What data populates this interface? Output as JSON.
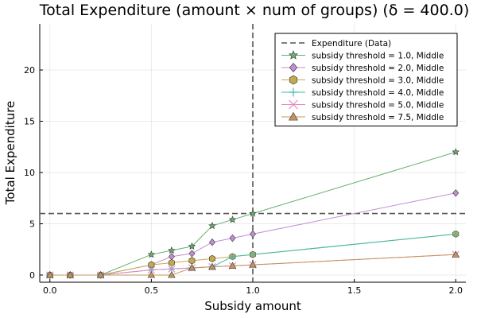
{
  "chart_data": {
    "type": "line",
    "title": "Total Expenditure (amount × num of groups) (δ = 400.0)",
    "xlabel": "Subsidy amount",
    "ylabel": "Total Expenditure",
    "xlim": [
      -0.05,
      2.05
    ],
    "ylim": [
      -0.7,
      24.5
    ],
    "xticks": [
      0.0,
      0.5,
      1.0,
      1.5,
      2.0
    ],
    "xtick_labels": [
      "0.0",
      "0.5",
      "1.0",
      "1.5",
      "2.0"
    ],
    "yticks": [
      0,
      5,
      10,
      15,
      20
    ],
    "ytick_labels": [
      "0",
      "5",
      "10",
      "15",
      "20"
    ],
    "grid": true,
    "legend_position": "top-right",
    "reference_lines": [
      {
        "name": "Expenditure (Data)",
        "orientation": "horizontal",
        "value": 6.0,
        "color": "#555555",
        "style": "dashed"
      },
      {
        "orientation": "vertical",
        "value": 1.0,
        "color": "#555555",
        "style": "dashed"
      }
    ],
    "x": [
      0.0,
      0.1,
      0.25,
      0.5,
      0.6,
      0.7,
      0.8,
      0.9,
      1.0,
      2.0
    ],
    "series": [
      {
        "name": "subsidy threshold = 1.0, Middle",
        "marker": "star",
        "color": "#6aae6e",
        "values": [
          0.0,
          0.0,
          0.0,
          2.0,
          2.4,
          2.8,
          4.8,
          5.4,
          6.0,
          12.0
        ]
      },
      {
        "name": "subsidy threshold = 2.0, Middle",
        "marker": "diamond",
        "color": "#c38ed4",
        "values": [
          0.0,
          0.0,
          0.0,
          1.0,
          1.8,
          2.1,
          3.2,
          3.6,
          4.0,
          8.0
        ]
      },
      {
        "name": "subsidy threshold = 3.0, Middle",
        "marker": "hexagon",
        "color": "#c5a94f",
        "values": [
          0.0,
          0.0,
          0.0,
          1.0,
          1.2,
          1.4,
          1.6,
          1.8,
          2.0,
          4.0
        ]
      },
      {
        "name": "subsidy threshold = 4.0, Middle",
        "marker": "plus",
        "color": "#3dbab0",
        "values": [
          0.0,
          0.0,
          0.0,
          0.5,
          0.6,
          0.7,
          0.8,
          1.8,
          2.0,
          4.0
        ]
      },
      {
        "name": "subsidy threshold = 5.0, Middle",
        "marker": "cross",
        "color": "#e887c6",
        "values": [
          0.0,
          0.0,
          0.0,
          0.5,
          0.6,
          0.7,
          0.8,
          0.9,
          1.0,
          2.0
        ]
      },
      {
        "name": "subsidy threshold = 7.5, Middle",
        "marker": "triangle",
        "color": "#c4955b",
        "values": [
          0.0,
          0.0,
          0.0,
          0.0,
          0.0,
          0.7,
          0.8,
          0.9,
          1.0,
          2.0
        ]
      }
    ]
  }
}
